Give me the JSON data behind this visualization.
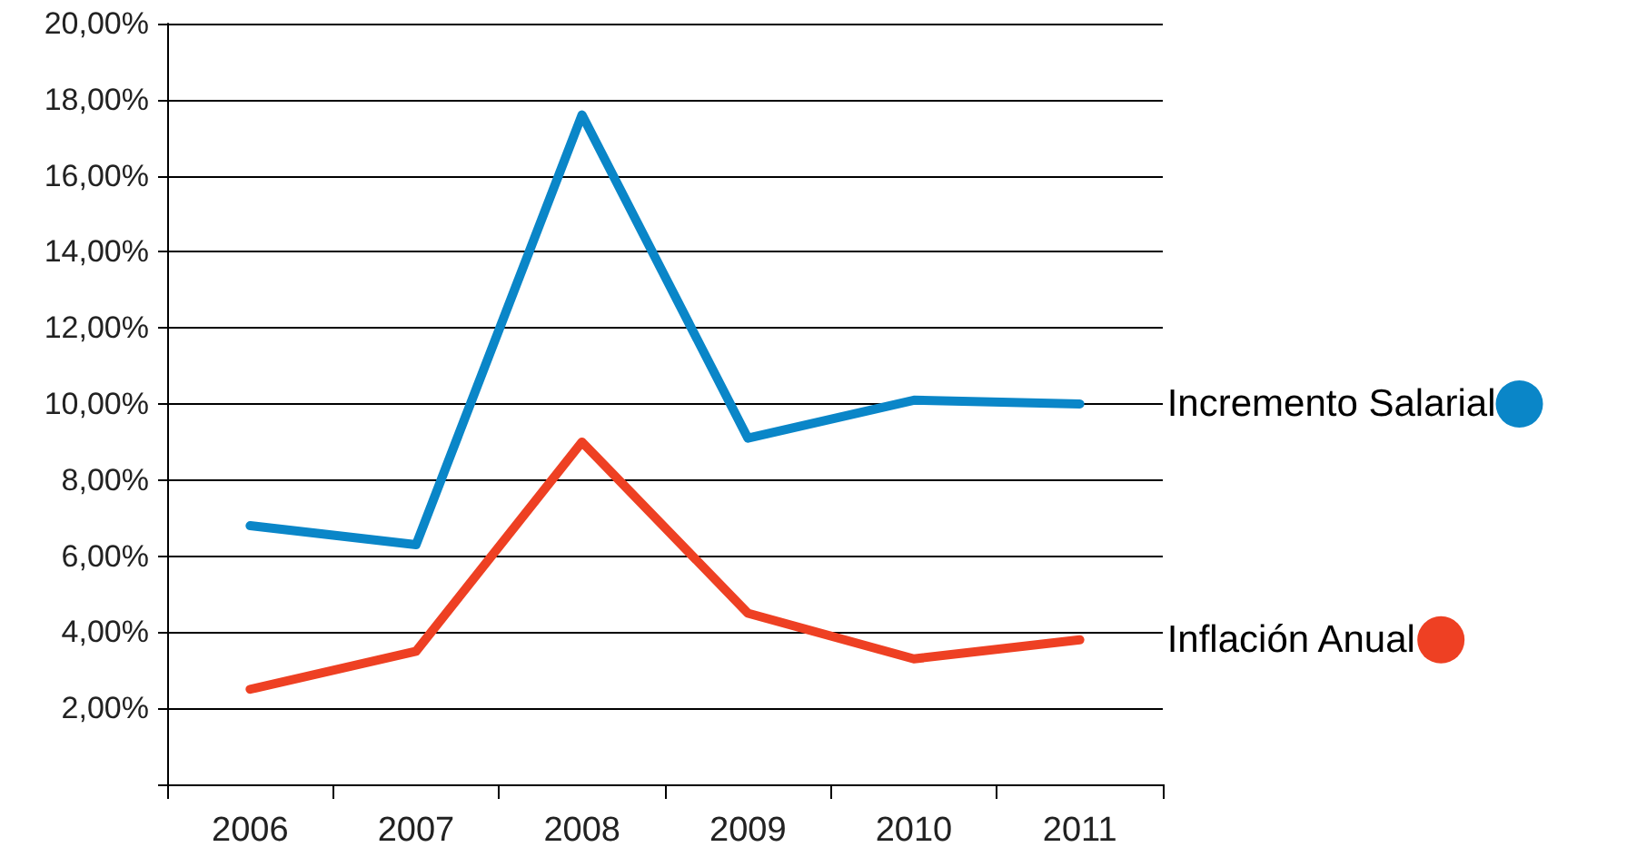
{
  "chart_data": {
    "type": "line",
    "categories": [
      "2006",
      "2007",
      "2008",
      "2009",
      "2010",
      "2011"
    ],
    "series": [
      {
        "name": "Incremento Salarial",
        "color": "#0a86c8",
        "values": [
          6.8,
          6.3,
          17.6,
          9.1,
          10.1,
          10.0
        ]
      },
      {
        "name": "Inflación Anual",
        "color": "#ee4023",
        "values": [
          2.5,
          3.5,
          9.0,
          4.5,
          3.3,
          3.8
        ]
      }
    ],
    "ylim": [
      0,
      20
    ],
    "yticks": [
      {
        "value": 0,
        "label": null
      },
      {
        "value": 2,
        "label": "2,00%"
      },
      {
        "value": 4,
        "label": "4,00%"
      },
      {
        "value": 6,
        "label": "6,00%"
      },
      {
        "value": 8,
        "label": "8,00%"
      },
      {
        "value": 10,
        "label": "10,00%"
      },
      {
        "value": 12,
        "label": "12,00%"
      },
      {
        "value": 14,
        "label": "14,00%"
      },
      {
        "value": 16,
        "label": "16,00%"
      },
      {
        "value": 18,
        "label": "18,00%"
      },
      {
        "value": 20,
        "label": "20,00%"
      }
    ],
    "grid": "y",
    "legend": "right",
    "marker": "none",
    "line_style": "solid"
  }
}
